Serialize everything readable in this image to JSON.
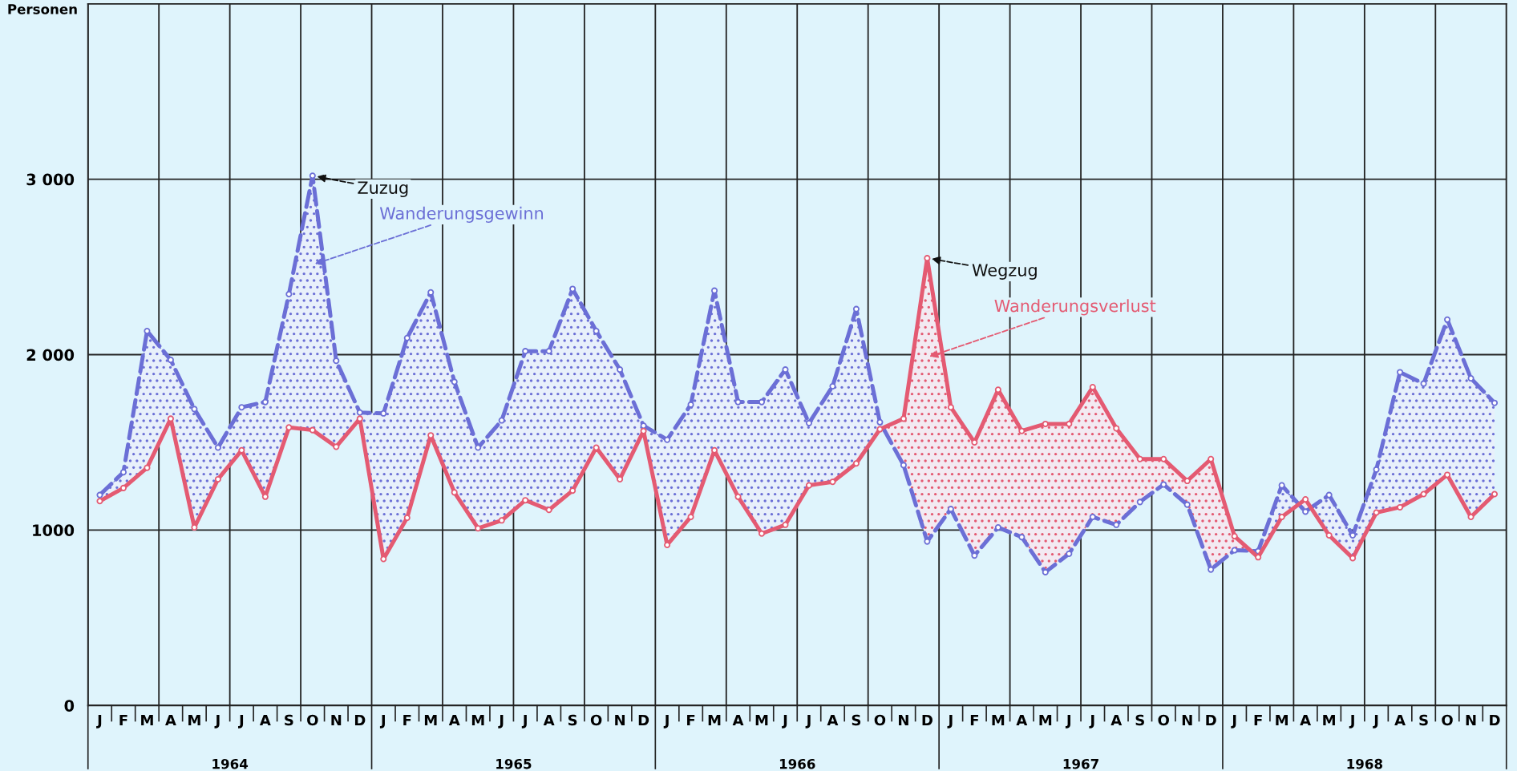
{
  "chart_data": {
    "type": "line",
    "ylabel": "Personen",
    "categories": [
      "J",
      "F",
      "M",
      "A",
      "M",
      "J",
      "J",
      "A",
      "S",
      "O",
      "N",
      "D",
      "J",
      "F",
      "M",
      "A",
      "M",
      "J",
      "J",
      "A",
      "S",
      "O",
      "N",
      "D",
      "J",
      "F",
      "M",
      "A",
      "M",
      "J",
      "J",
      "A",
      "S",
      "O",
      "N",
      "D",
      "J",
      "F",
      "M",
      "A",
      "M",
      "J",
      "J",
      "A",
      "S",
      "O",
      "N",
      "D",
      "J",
      "F",
      "M",
      "A",
      "M",
      "J",
      "J",
      "A",
      "S",
      "O",
      "N",
      "D"
    ],
    "series": [
      {
        "color": "#6b6fd6",
        "line_style": "dashed",
        "values": [
          1200,
          1330,
          2135,
          1970,
          1690,
          1470,
          1700,
          1730,
          2345,
          3020,
          1965,
          1670,
          1665,
          2095,
          2355,
          1845,
          1470,
          1625,
          2020,
          2020,
          2375,
          2135,
          1915,
          1595,
          1515,
          1715,
          2365,
          1730,
          1730,
          1915,
          1610,
          1820,
          2260,
          1615,
          1370,
          935,
          1120,
          855,
          1015,
          960,
          760,
          865,
          1075,
          1030,
          1160,
          1260,
          1145,
          775,
          885,
          880,
          1255,
          1105,
          1200,
          970,
          1345,
          1900,
          1835,
          2200,
          1865,
          1725
        ]
      },
      {
        "color": "#e45a72",
        "line_style": "solid",
        "values": [
          1165,
          1240,
          1355,
          1635,
          1015,
          1290,
          1455,
          1190,
          1585,
          1570,
          1475,
          1635,
          835,
          1070,
          1540,
          1215,
          1010,
          1055,
          1170,
          1115,
          1225,
          1470,
          1290,
          1565,
          915,
          1075,
          1455,
          1190,
          980,
          1030,
          1255,
          1275,
          1380,
          1575,
          1635,
          2550,
          1700,
          1500,
          1800,
          1565,
          1605,
          1605,
          1815,
          1580,
          1405,
          1405,
          1280,
          1405,
          965,
          845,
          1075,
          1175,
          970,
          840,
          1100,
          1130,
          1205,
          1315,
          1075,
          1205
        ]
      }
    ],
    "ylim": [
      0,
      4000
    ],
    "yticks": [
      0,
      {
        "value": 1000,
        "label": "1000"
      },
      {
        "value": 2000,
        "label": "2 000"
      },
      {
        "value": 3000,
        "label": "3 000"
      }
    ],
    "grid": true,
    "marker": "circle",
    "annotations": [
      "Zuzug",
      "Wanderungsgewinn",
      "Wegzug",
      "Wanderungsverlust",
      "1964",
      "1965",
      "1966",
      "1967",
      "1968"
    ]
  }
}
